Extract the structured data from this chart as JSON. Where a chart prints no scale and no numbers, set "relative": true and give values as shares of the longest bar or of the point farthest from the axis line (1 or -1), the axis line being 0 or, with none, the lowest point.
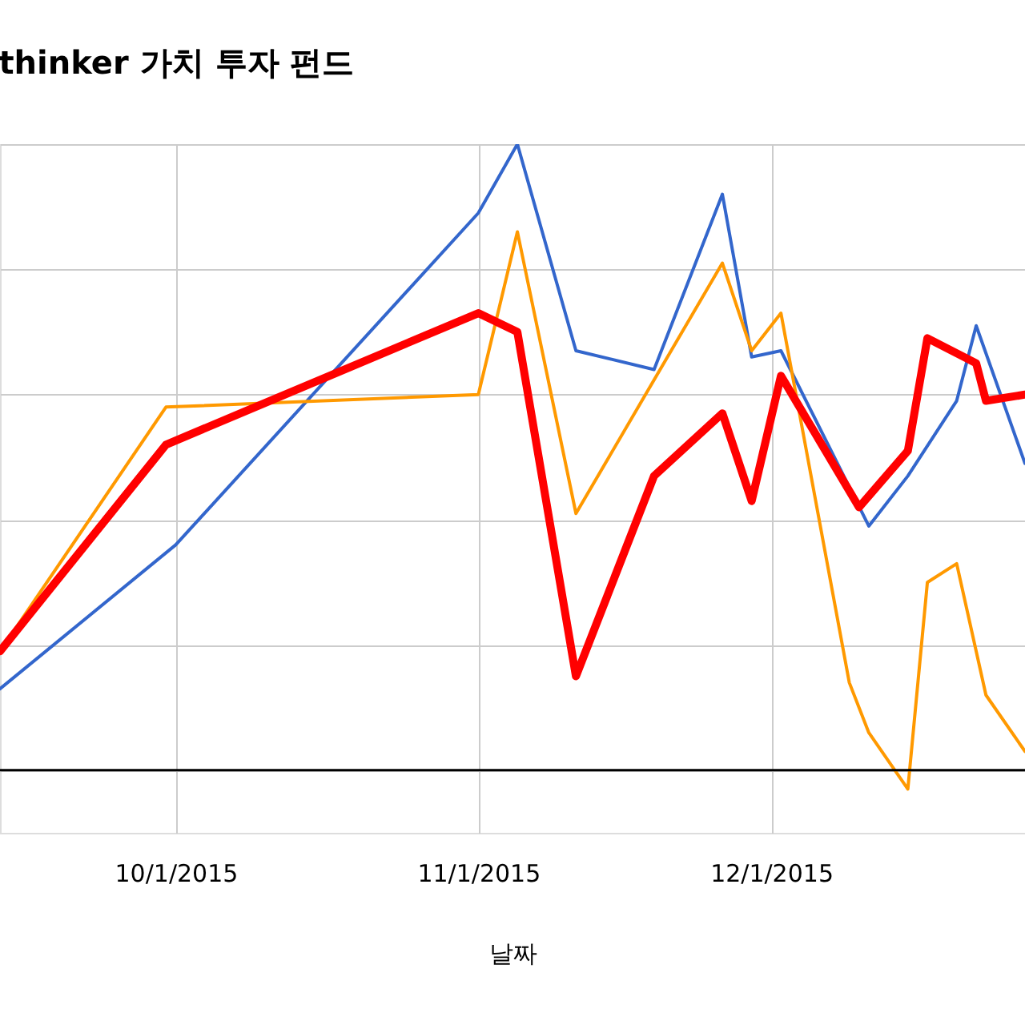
{
  "chart_data": {
    "type": "line",
    "title": "thinker 가치 투자 펀드",
    "xlabel": "날짜",
    "relative": true,
    "xlim": [
      "2015-09-13",
      "2015-12-27"
    ],
    "xticks": [
      {
        "value": "2015-10-01",
        "label": "10/1/2015"
      },
      {
        "value": "2015-11-01",
        "label": "11/1/2015"
      },
      {
        "value": "2015-12-01",
        "label": "12/1/2015"
      }
    ],
    "grid": true,
    "legend": false,
    "line_style": "solid",
    "marker": "none",
    "series": [
      {
        "color": "#3366cc",
        "x": [
          "2015-09-13",
          "2015-10-01",
          "2015-11-01",
          "2015-11-05",
          "2015-11-11",
          "2015-11-19",
          "2015-11-26",
          "2015-11-29",
          "2015-12-02",
          "2015-12-11",
          "2015-12-15",
          "2015-12-20",
          "2015-12-22",
          "2015-12-27"
        ],
        "values": [
          0.13,
          0.36,
          0.89,
          1.0,
          0.67,
          0.64,
          0.92,
          0.66,
          0.67,
          0.39,
          0.47,
          0.59,
          0.71,
          0.49
        ]
      },
      {
        "color": "#ff9900",
        "x": [
          "2015-09-13",
          "2015-09-30",
          "2015-11-01",
          "2015-11-05",
          "2015-11-11",
          "2015-11-26",
          "2015-11-29",
          "2015-12-02",
          "2015-12-09",
          "2015-12-11",
          "2015-12-15",
          "2015-12-17",
          "2015-12-20",
          "2015-12-23",
          "2015-12-27"
        ],
        "values": [
          0.19,
          0.58,
          0.6,
          0.86,
          0.41,
          0.81,
          0.67,
          0.73,
          0.14,
          0.06,
          -0.03,
          0.3,
          0.33,
          0.12,
          0.03
        ]
      },
      {
        "color": "#ff0000",
        "x": [
          "2015-09-13",
          "2015-09-30",
          "2015-11-01",
          "2015-11-05",
          "2015-11-11",
          "2015-11-19",
          "2015-11-26",
          "2015-11-29",
          "2015-12-02",
          "2015-12-10",
          "2015-12-15",
          "2015-12-17",
          "2015-12-22",
          "2015-12-23",
          "2015-12-27"
        ],
        "values": [
          0.19,
          0.52,
          0.73,
          0.7,
          0.15,
          0.47,
          0.57,
          0.43,
          0.63,
          0.42,
          0.51,
          0.69,
          0.65,
          0.59,
          0.6
        ]
      }
    ]
  }
}
